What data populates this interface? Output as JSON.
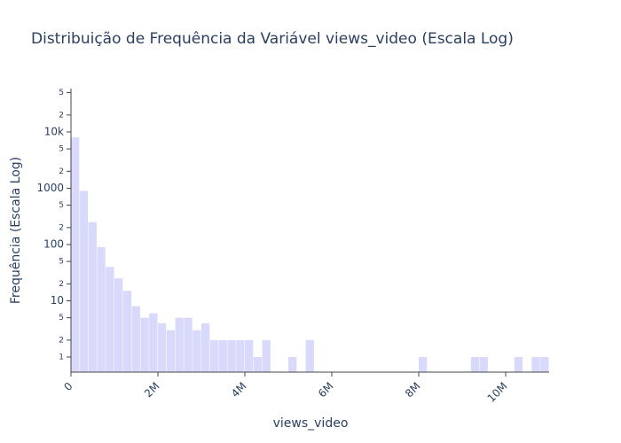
{
  "chart_data": {
    "type": "histogram",
    "title": "Distribuição de Frequência da Variável views_video (Escala Log)",
    "x_label": "views_video",
    "y_label": "Frequência (Escala Log)",
    "color": "#d9d9fb",
    "log_y": true,
    "bins": [
      0,
      200000,
      400000,
      600000,
      800000,
      1000000,
      1200000,
      1400000,
      1600000,
      1800000,
      2000000,
      2200000,
      2400000,
      2600000,
      2800000,
      3000000,
      3200000,
      3400000,
      3600000,
      3800000,
      4000000,
      4200000,
      4400000,
      4600000,
      4800000,
      5000000,
      5200000,
      5400000,
      5600000,
      5800000,
      6000000,
      6200000,
      6400000,
      6600000,
      6800000,
      7000000,
      7200000,
      7400000,
      7600000,
      7800000,
      8000000,
      8200000,
      8400000,
      8600000,
      8800000,
      9000000,
      9200000,
      9400000,
      9600000,
      9800000,
      10000000,
      10200000,
      10400000,
      10600000,
      10800000,
      11000000
    ],
    "values": [
      8000,
      900,
      250,
      90,
      40,
      25,
      15,
      8,
      5,
      6,
      4,
      3,
      5,
      5,
      3,
      4,
      2,
      2,
      2,
      2,
      2,
      1,
      2,
      0,
      0,
      1,
      0,
      2,
      0,
      0,
      0,
      0,
      0,
      0,
      0,
      0,
      0,
      0,
      0,
      0,
      1,
      0,
      0,
      0,
      0,
      0,
      1,
      1,
      0,
      0,
      0,
      1,
      0,
      1,
      1
    ],
    "xlim": [
      0,
      11000000
    ],
    "xticks": [
      0,
      {
        "value": 2000000,
        "label": "2M"
      },
      {
        "value": 4000000,
        "label": "4M"
      },
      {
        "value": 6000000,
        "label": "6M"
      },
      {
        "value": 8000000,
        "label": "8M"
      },
      {
        "value": 10000000,
        "label": "10M"
      }
    ],
    "ylim": [
      0.54,
      59000
    ],
    "yticks": [
      1,
      2,
      5,
      10,
      {
        "value": 20,
        "label": "2"
      },
      {
        "value": 50,
        "label": "5"
      },
      100,
      {
        "value": 200,
        "label": "2"
      },
      {
        "value": 500,
        "label": "5"
      },
      1000,
      {
        "value": 2000,
        "label": "2"
      },
      {
        "value": 5000,
        "label": "5"
      },
      {
        "value": 10000,
        "label": "10k"
      },
      {
        "value": 20000,
        "label": "2"
      },
      {
        "value": 50000,
        "label": "5"
      }
    ]
  }
}
